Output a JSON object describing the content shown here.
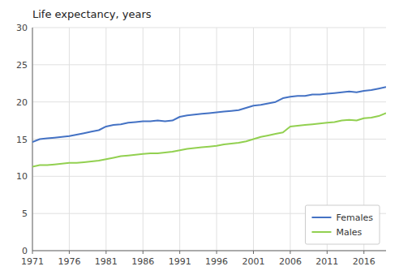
{
  "chart_data": {
    "type": "line",
    "title": "Life expectancy, years",
    "x": [
      1971,
      1972,
      1973,
      1974,
      1975,
      1976,
      1977,
      1978,
      1979,
      1980,
      1981,
      1982,
      1983,
      1984,
      1985,
      1986,
      1987,
      1988,
      1989,
      1990,
      1991,
      1992,
      1993,
      1994,
      1995,
      1996,
      1997,
      1998,
      1999,
      2000,
      2001,
      2002,
      2003,
      2004,
      2005,
      2006,
      2007,
      2008,
      2009,
      2010,
      2011,
      2012,
      2013,
      2014,
      2015,
      2016,
      2017,
      2018,
      2019
    ],
    "series": [
      {
        "name": "Females",
        "color": "#4472c4",
        "values": [
          14.6,
          15.0,
          15.1,
          15.2,
          15.3,
          15.4,
          15.6,
          15.8,
          16.0,
          16.2,
          16.7,
          16.9,
          17.0,
          17.2,
          17.3,
          17.4,
          17.4,
          17.5,
          17.4,
          17.5,
          18.0,
          18.2,
          18.3,
          18.4,
          18.5,
          18.6,
          18.7,
          18.8,
          18.9,
          19.2,
          19.5,
          19.6,
          19.8,
          20.0,
          20.5,
          20.7,
          20.8,
          20.8,
          21.0,
          21.0,
          21.1,
          21.2,
          21.3,
          21.4,
          21.3,
          21.5,
          21.6,
          21.8,
          22.0
        ]
      },
      {
        "name": "Males",
        "color": "#92d050",
        "values": [
          11.3,
          11.5,
          11.5,
          11.6,
          11.7,
          11.8,
          11.8,
          11.9,
          12.0,
          12.1,
          12.3,
          12.5,
          12.7,
          12.8,
          12.9,
          13.0,
          13.1,
          13.1,
          13.2,
          13.3,
          13.5,
          13.7,
          13.8,
          13.9,
          14.0,
          14.1,
          14.3,
          14.4,
          14.5,
          14.7,
          15.0,
          15.3,
          15.5,
          15.7,
          15.9,
          16.7,
          16.8,
          16.9,
          17.0,
          17.1,
          17.2,
          17.3,
          17.5,
          17.6,
          17.5,
          17.8,
          17.9,
          18.1,
          18.5
        ]
      }
    ],
    "xlim": [
      1971,
      2019
    ],
    "xticks": [
      1971,
      1976,
      1981,
      1986,
      1991,
      1996,
      2001,
      2006,
      2011,
      2016
    ],
    "ylim": [
      0,
      30
    ],
    "yticks": [
      0,
      5,
      10,
      15,
      20,
      25,
      30
    ],
    "grid": true,
    "legend": "lower right"
  }
}
